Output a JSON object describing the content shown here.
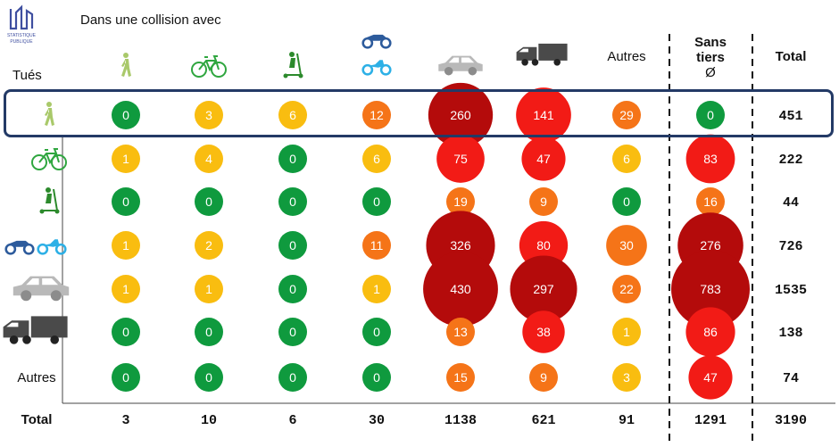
{
  "header": {
    "subtitle": "Dans une collision avec",
    "row_title": "Tués",
    "logo_text": "STATISTIQUE PUBLIQUE"
  },
  "colors": {
    "green": "#0f9a3e",
    "yellow": "#f9bd10",
    "orange": "#f57418",
    "red": "#f21b16",
    "darkred": "#b40b0b",
    "pedestrian": "#a9c96a",
    "bike": "#2fa63f",
    "scooter": "#2c8a2c",
    "moto_dark": "#2d5b9c",
    "moto_light": "#2db0e6",
    "car": "#b9b9b9",
    "truck": "#4a4a4a",
    "highlight": "#233a66"
  },
  "chart_data": {
    "type": "table",
    "columns": [
      {
        "key": "pieton",
        "label": "",
        "icon": "pedestrian-icon"
      },
      {
        "key": "velo",
        "label": "",
        "icon": "bicycle-icon"
      },
      {
        "key": "edp",
        "label": "",
        "icon": "scooter-icon"
      },
      {
        "key": "2rm",
        "label": "",
        "icon": "motorcycle-icon"
      },
      {
        "key": "vt",
        "label": "",
        "icon": "car-icon"
      },
      {
        "key": "pl",
        "label": "",
        "icon": "truck-icon"
      },
      {
        "key": "autres",
        "label": "Autres",
        "icon": ""
      },
      {
        "key": "sans_tiers",
        "label": "Sans tiers",
        "symbol": "Ø",
        "icon": ""
      },
      {
        "key": "total",
        "label": "Total",
        "icon": ""
      }
    ],
    "rows": [
      {
        "label": "",
        "icon": "pedestrian-icon",
        "values": [
          0,
          3,
          6,
          12,
          260,
          141,
          29,
          0
        ],
        "total": 451
      },
      {
        "label": "",
        "icon": "bicycle-icon",
        "values": [
          1,
          4,
          0,
          6,
          75,
          47,
          6,
          83
        ],
        "total": 222
      },
      {
        "label": "",
        "icon": "scooter-icon",
        "values": [
          0,
          0,
          0,
          0,
          19,
          9,
          0,
          16
        ],
        "total": 44
      },
      {
        "label": "",
        "icon": "motorcycle-icon",
        "values": [
          1,
          2,
          0,
          11,
          326,
          80,
          30,
          276
        ],
        "total": 726
      },
      {
        "label": "",
        "icon": "car-icon",
        "values": [
          1,
          1,
          0,
          1,
          430,
          297,
          22,
          783
        ],
        "total": 1535
      },
      {
        "label": "",
        "icon": "truck-icon",
        "values": [
          0,
          0,
          0,
          0,
          13,
          38,
          1,
          86
        ],
        "total": 138
      },
      {
        "label": "Autres",
        "icon": "",
        "values": [
          0,
          0,
          0,
          0,
          15,
          9,
          3,
          47
        ],
        "total": 74
      }
    ],
    "totals_row": {
      "label": "Total",
      "values": [
        3,
        10,
        6,
        30,
        1138,
        621,
        91,
        1291
      ],
      "total": 3190
    },
    "color_scale": [
      {
        "max": 0,
        "color": "green"
      },
      {
        "max": 6,
        "color": "yellow"
      },
      {
        "max": 30,
        "color": "orange"
      },
      {
        "max": 199,
        "color": "red"
      },
      {
        "max": 100000,
        "color": "darkred"
      }
    ],
    "highlighted_row": 0
  }
}
